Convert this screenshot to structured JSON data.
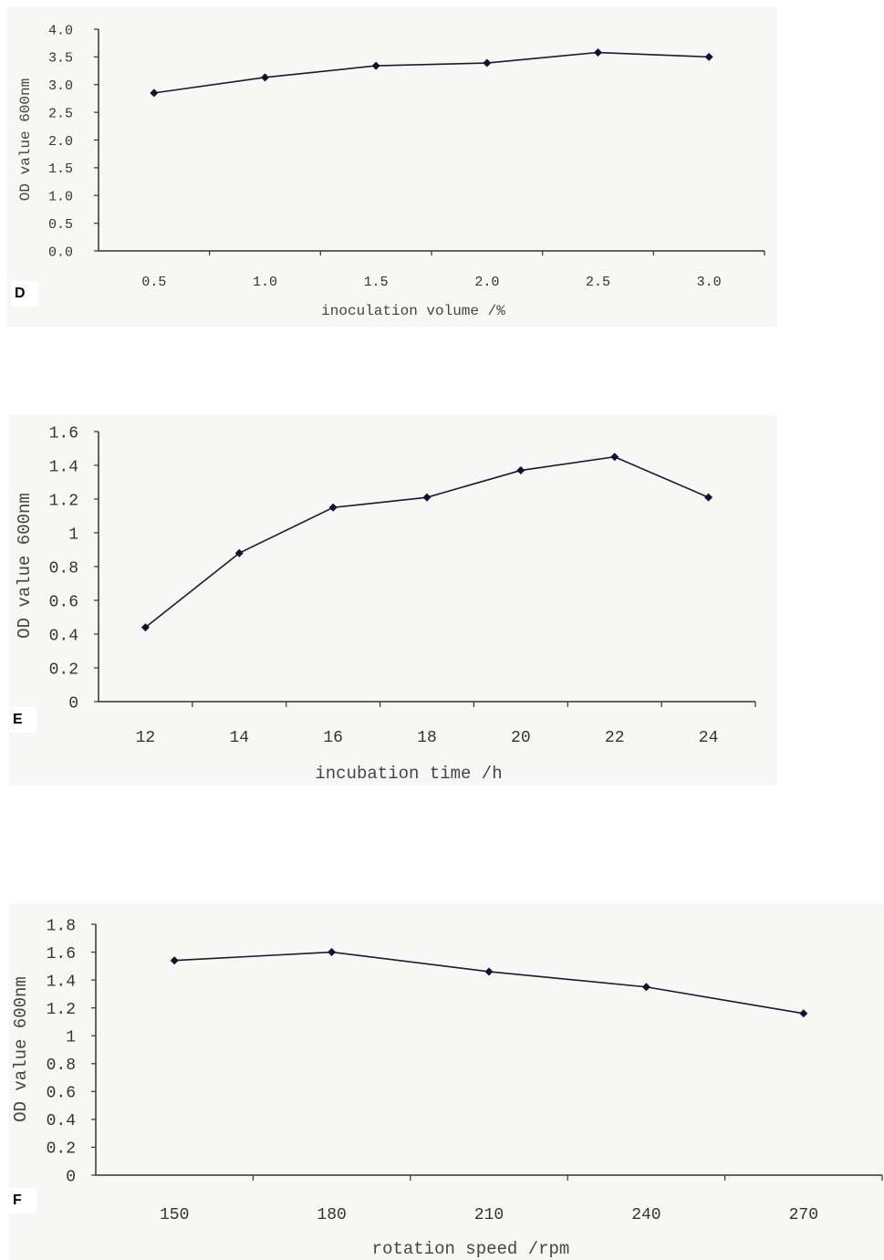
{
  "chart_data": [
    {
      "type": "line",
      "panel_letter": "D",
      "categories": [
        "0.5",
        "1.0",
        "1.5",
        "2.0",
        "2.5",
        "3.0"
      ],
      "values": [
        2.85,
        3.13,
        3.34,
        3.39,
        3.58,
        3.5
      ],
      "y_ticks": [
        "0.0",
        "0.5",
        "1.0",
        "1.5",
        "2.0",
        "2.5",
        "3.0",
        "3.5",
        "4.0"
      ],
      "xlabel": "inoculation volume /%",
      "ylabel": "OD value 600nm",
      "ylim": [
        0,
        4
      ],
      "grid": false,
      "line_color": "#1a1a2e",
      "marker_color": "#101030"
    },
    {
      "type": "line",
      "panel_letter": "E",
      "categories": [
        "12",
        "14",
        "16",
        "18",
        "20",
        "22",
        "24"
      ],
      "values": [
        0.44,
        0.88,
        1.15,
        1.21,
        1.37,
        1.45,
        1.21
      ],
      "y_ticks": [
        "0",
        "0.2",
        "0.4",
        "0.6",
        "0.8",
        "1",
        "1.2",
        "1.4",
        "1.6"
      ],
      "xlabel": "incubation time /h",
      "ylabel": "OD value 600nm",
      "ylim": [
        0,
        1.6
      ],
      "grid": false,
      "line_color": "#1a1a2e",
      "marker_color": "#101030"
    },
    {
      "type": "line",
      "panel_letter": "F",
      "categories": [
        "150",
        "180",
        "210",
        "240",
        "270"
      ],
      "values": [
        1.54,
        1.6,
        1.46,
        1.35,
        1.16
      ],
      "y_ticks": [
        "0",
        "0.2",
        "0.4",
        "0.6",
        "0.8",
        "1",
        "1.2",
        "1.4",
        "1.6",
        "1.8"
      ],
      "xlabel": "rotation speed /rpm",
      "ylabel": "OD value 600nm",
      "ylim": [
        0,
        1.8
      ],
      "grid": false,
      "line_color": "#1a1a2e",
      "marker_color": "#101030"
    }
  ]
}
